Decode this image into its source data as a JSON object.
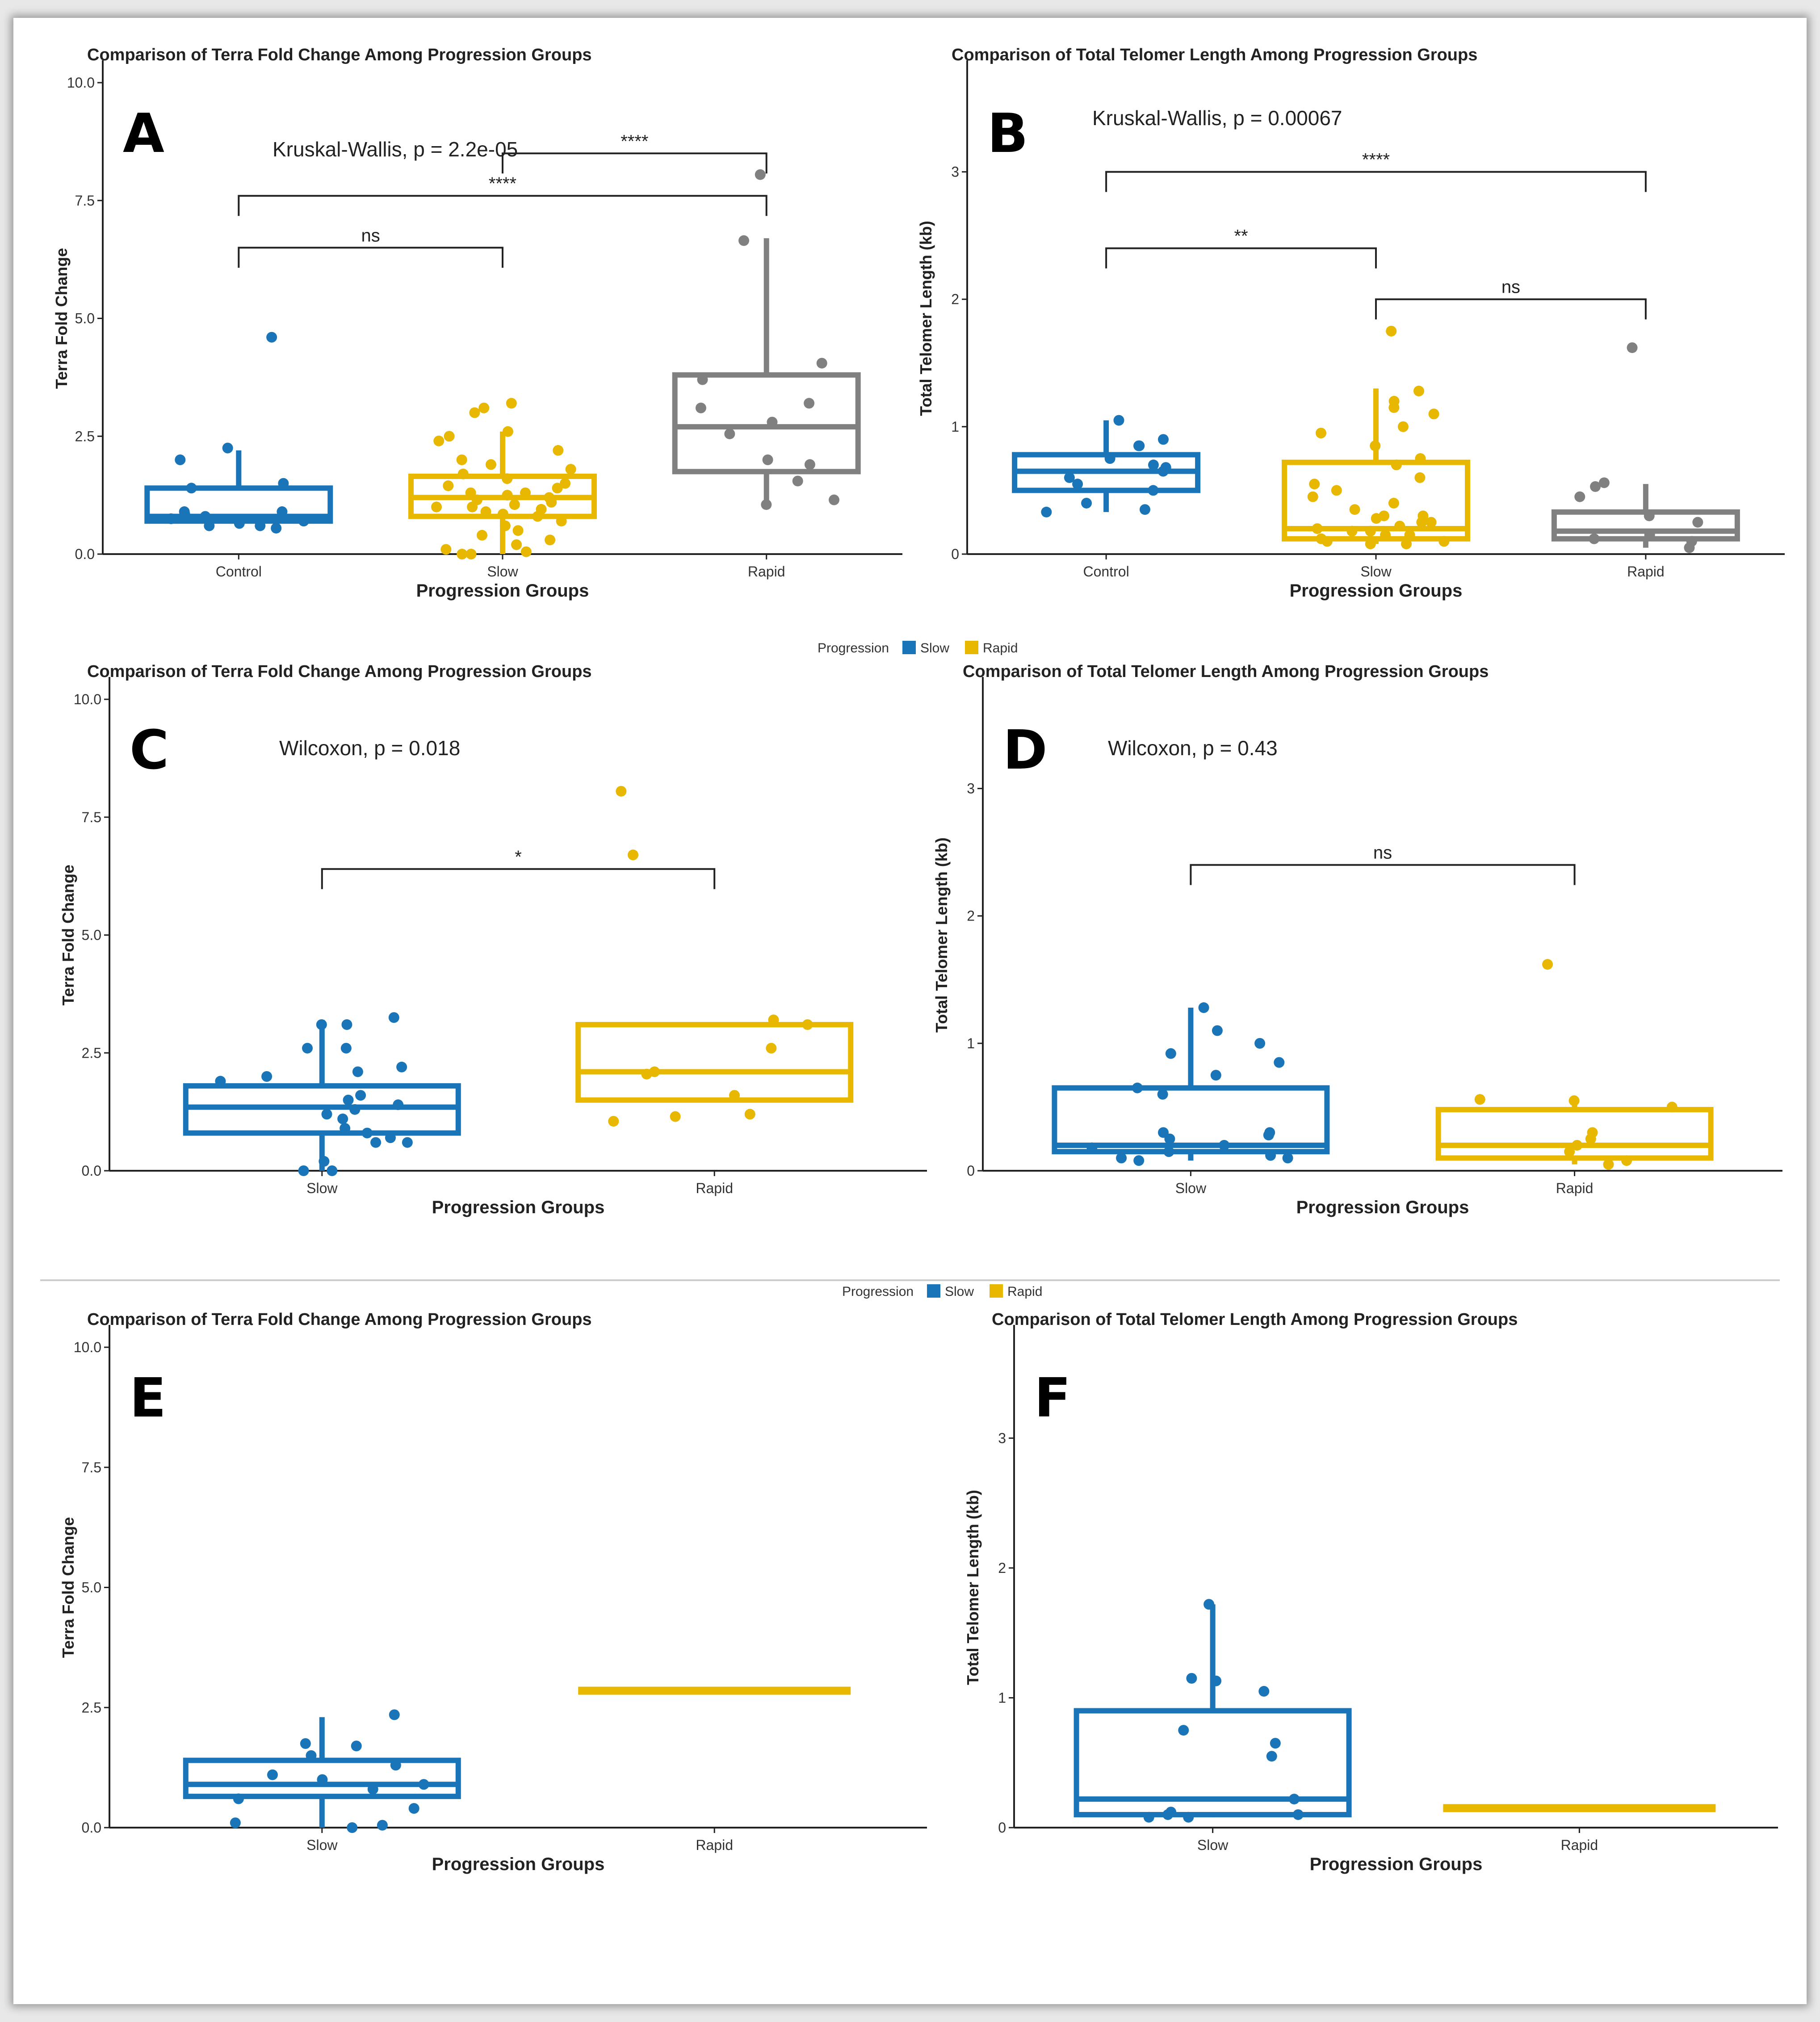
{
  "colors": {
    "control": "#1a74b8",
    "slow": "#1a74b8",
    "rapid": "#e8b800",
    "slow_group": "#e8b800",
    "rapid_group": "#808080",
    "bracket": "#222222"
  },
  "legend": {
    "title": "Progression",
    "items": [
      "Slow",
      "Rapid"
    ]
  },
  "chart_data": [
    {
      "id": "A",
      "type": "boxplot",
      "letter": "A",
      "title": "Comparison of Terra Fold Change Among Progression Groups",
      "xlabel": "Progression Groups",
      "ylabel": "Terra Fold Change",
      "ylim": [
        0,
        10
      ],
      "yticks": [
        "0.0",
        "2.5",
        "5.0",
        "7.5",
        "10.0"
      ],
      "ytick_values": [
        0,
        2.5,
        5,
        7.5,
        10
      ],
      "categories": [
        "Control",
        "Slow",
        "Rapid"
      ],
      "stat_label": "Kruskal-Wallis, p = 2.2e-05",
      "boxes": [
        {
          "group": "Control",
          "color": "#1a74b8",
          "q1": 0.7,
          "median": 0.8,
          "q3": 1.4,
          "whisker_low": 0.7,
          "whisker_high": 2.2,
          "points": [
            4.6,
            2.0,
            2.25,
            1.5,
            1.4,
            0.9,
            0.85,
            0.7,
            0.6,
            0.55,
            0.75,
            0.8,
            0.6,
            0.65,
            0.9
          ]
        },
        {
          "group": "Slow",
          "color": "#e8b800",
          "q1": 0.8,
          "median": 1.2,
          "q3": 1.65,
          "whisker_low": 0.0,
          "whisker_high": 2.6,
          "points": [
            3.2,
            3.1,
            3.0,
            2.6,
            2.5,
            2.4,
            2.2,
            2.0,
            1.9,
            1.8,
            1.7,
            1.6,
            1.5,
            1.4,
            1.3,
            1.25,
            1.2,
            1.15,
            1.1,
            1.0,
            0.95,
            0.9,
            0.8,
            0.7,
            0.6,
            0.5,
            0.4,
            0.3,
            0.2,
            0.1,
            0.05,
            0.0,
            0.0,
            1.3,
            1.0,
            0.85,
            1.45,
            1.05
          ]
        },
        {
          "group": "Rapid",
          "color": "#808080",
          "q1": 1.75,
          "median": 2.7,
          "q3": 3.8,
          "whisker_low": 1.0,
          "whisker_high": 6.7,
          "points": [
            8.05,
            6.65,
            4.05,
            3.7,
            3.2,
            3.1,
            2.8,
            2.55,
            2.0,
            1.9,
            1.55,
            1.15,
            1.05
          ]
        }
      ],
      "brackets": [
        {
          "from": "Control",
          "to": "Slow",
          "label": "ns",
          "y": 6.5
        },
        {
          "from": "Control",
          "to": "Rapid",
          "label": "****",
          "y": 7.6
        },
        {
          "from": "Slow",
          "to": "Rapid",
          "label": "****",
          "y": 8.5
        }
      ]
    },
    {
      "id": "B",
      "type": "boxplot",
      "letter": "B",
      "title": "Comparison of Total Telomer Length Among Progression Groups",
      "xlabel": "Progression Groups",
      "ylabel": "Total Telomer Length (kb)",
      "ylim": [
        0,
        3.7
      ],
      "yticks": [
        "0",
        "1",
        "2",
        "3"
      ],
      "ytick_values": [
        0,
        1,
        2,
        3
      ],
      "categories": [
        "Control",
        "Slow",
        "Rapid"
      ],
      "stat_label": "Kruskal-Wallis, p = 0.00067",
      "boxes": [
        {
          "group": "Control",
          "color": "#1a74b8",
          "q1": 0.5,
          "median": 0.65,
          "q3": 0.78,
          "whisker_low": 0.33,
          "whisker_high": 1.05,
          "points": [
            1.05,
            0.9,
            0.85,
            0.85,
            0.75,
            0.7,
            0.65,
            0.6,
            0.55,
            0.5,
            0.4,
            0.35,
            0.33,
            0.68
          ]
        },
        {
          "group": "Slow",
          "color": "#e8b800",
          "q1": 0.12,
          "median": 0.2,
          "q3": 0.72,
          "whisker_low": 0.08,
          "whisker_high": 1.3,
          "points": [
            1.75,
            1.28,
            1.2,
            1.15,
            1.1,
            1.0,
            0.95,
            0.85,
            0.75,
            0.7,
            0.6,
            0.55,
            0.5,
            0.45,
            0.4,
            0.35,
            0.3,
            0.28,
            0.25,
            0.22,
            0.2,
            0.18,
            0.15,
            0.12,
            0.1,
            0.1,
            0.08,
            0.08,
            0.3,
            0.25,
            0.15,
            0.18
          ]
        },
        {
          "group": "Rapid",
          "color": "#808080",
          "q1": 0.12,
          "median": 0.18,
          "q3": 0.33,
          "whisker_low": 0.05,
          "whisker_high": 0.55,
          "points": [
            1.62,
            0.56,
            0.53,
            0.45,
            0.3,
            0.25,
            0.15,
            0.12,
            0.1,
            0.05
          ]
        }
      ],
      "brackets": [
        {
          "from": "Control",
          "to": "Slow",
          "label": "**",
          "y": 2.4
        },
        {
          "from": "Slow",
          "to": "Rapid",
          "label": "ns",
          "y": 2.0
        },
        {
          "from": "Control",
          "to": "Rapid",
          "label": "****",
          "y": 3.0
        }
      ]
    },
    {
      "id": "C",
      "type": "boxplot",
      "letter": "C",
      "title": "Comparison of Terra Fold Change Among Progression Groups",
      "xlabel": "Progression Groups",
      "ylabel": "Terra Fold Change",
      "ylim": [
        0,
        10
      ],
      "yticks": [
        "0.0",
        "2.5",
        "5.0",
        "7.5",
        "10.0"
      ],
      "ytick_values": [
        0,
        2.5,
        5,
        7.5,
        10
      ],
      "categories": [
        "Slow",
        "Rapid"
      ],
      "stat_label": "Wilcoxon, p = 0.018",
      "boxes": [
        {
          "group": "Slow",
          "color": "#1a74b8",
          "q1": 0.8,
          "median": 1.35,
          "q3": 1.8,
          "whisker_low": 0.0,
          "whisker_high": 3.2,
          "points": [
            3.25,
            3.1,
            3.1,
            2.6,
            2.6,
            2.2,
            2.1,
            2.0,
            1.9,
            1.6,
            1.5,
            1.4,
            1.3,
            1.2,
            0.9,
            0.8,
            0.7,
            0.6,
            0.6,
            0.2,
            0.0,
            0.0,
            1.1
          ]
        },
        {
          "group": "Rapid",
          "color": "#e8b800",
          "q1": 1.5,
          "median": 2.1,
          "q3": 3.1,
          "whisker_low": 1.5,
          "whisker_high": 3.1,
          "points": [
            8.05,
            6.7,
            3.2,
            3.1,
            2.6,
            2.1,
            2.05,
            1.6,
            1.2,
            1.15,
            1.05
          ]
        }
      ],
      "brackets": [
        {
          "from": "Slow",
          "to": "Rapid",
          "label": "*",
          "y": 6.4
        }
      ]
    },
    {
      "id": "D",
      "type": "boxplot",
      "letter": "D",
      "title": "Comparison of Total Telomer Length Among Progression Groups",
      "xlabel": "Progression Groups",
      "ylabel": "Total Telomer Length (kb)",
      "ylim": [
        0,
        3.7
      ],
      "yticks": [
        "0",
        "1",
        "2",
        "3"
      ],
      "ytick_values": [
        0,
        1,
        2,
        3
      ],
      "categories": [
        "Slow",
        "Rapid"
      ],
      "stat_label": "Wilcoxon, p = 0.43",
      "boxes": [
        {
          "group": "Slow",
          "color": "#1a74b8",
          "q1": 0.15,
          "median": 0.2,
          "q3": 0.65,
          "whisker_low": 0.08,
          "whisker_high": 1.28,
          "points": [
            1.28,
            1.1,
            1.0,
            0.92,
            0.85,
            0.75,
            0.65,
            0.6,
            0.3,
            0.3,
            0.28,
            0.25,
            0.2,
            0.18,
            0.15,
            0.12,
            0.1,
            0.08,
            0.1
          ]
        },
        {
          "group": "Rapid",
          "color": "#e8b800",
          "q1": 0.1,
          "median": 0.2,
          "q3": 0.48,
          "whisker_low": 0.05,
          "whisker_high": 0.56,
          "points": [
            1.62,
            0.56,
            0.55,
            0.5,
            0.3,
            0.25,
            0.2,
            0.15,
            0.08,
            0.05
          ]
        }
      ],
      "brackets": [
        {
          "from": "Slow",
          "to": "Rapid",
          "label": "ns",
          "y": 2.4
        }
      ]
    },
    {
      "id": "E",
      "type": "boxplot",
      "letter": "E",
      "title": "Comparison of Terra Fold Change Among Progression Groups",
      "xlabel": "Progression Groups",
      "ylabel": "Terra Fold Change",
      "ylim": [
        0,
        10
      ],
      "yticks": [
        "0.0",
        "2.5",
        "5.0",
        "7.5",
        "10.0"
      ],
      "ytick_values": [
        0,
        2.5,
        5,
        7.5,
        10
      ],
      "categories": [
        "Slow",
        "Rapid"
      ],
      "stat_label": "",
      "boxes": [
        {
          "group": "Slow",
          "color": "#1a74b8",
          "q1": 0.65,
          "median": 0.9,
          "q3": 1.4,
          "whisker_low": 0.0,
          "whisker_high": 2.3,
          "points": [
            2.35,
            1.75,
            1.7,
            1.5,
            1.3,
            1.1,
            1.0,
            0.9,
            0.8,
            0.6,
            0.4,
            0.05,
            0.0,
            0.1
          ]
        },
        {
          "group": "Rapid",
          "color": "#e8b800",
          "q1": 2.85,
          "median": 2.85,
          "q3": 2.85,
          "whisker_low": 2.85,
          "whisker_high": 2.85,
          "points": []
        }
      ],
      "brackets": []
    },
    {
      "id": "F",
      "type": "boxplot",
      "letter": "F",
      "title": "Comparison of Total Telomer Length Among Progression Groups",
      "xlabel": "Progression Groups",
      "ylabel": "Total Telomer Length (kb)",
      "ylim": [
        0,
        3.7
      ],
      "yticks": [
        "0",
        "1",
        "2",
        "3"
      ],
      "ytick_values": [
        0,
        1,
        2,
        3
      ],
      "categories": [
        "Slow",
        "Rapid"
      ],
      "stat_label": "",
      "boxes": [
        {
          "group": "Slow",
          "color": "#1a74b8",
          "q1": 0.1,
          "median": 0.22,
          "q3": 0.9,
          "whisker_low": 0.08,
          "whisker_high": 1.72,
          "points": [
            1.72,
            1.15,
            1.13,
            1.05,
            0.75,
            0.65,
            0.55,
            0.22,
            0.12,
            0.1,
            0.1,
            0.08,
            0.08
          ]
        },
        {
          "group": "Rapid",
          "color": "#e8b800",
          "q1": 0.15,
          "median": 0.15,
          "q3": 0.15,
          "whisker_low": 0.15,
          "whisker_high": 0.15,
          "points": []
        }
      ],
      "brackets": []
    }
  ]
}
